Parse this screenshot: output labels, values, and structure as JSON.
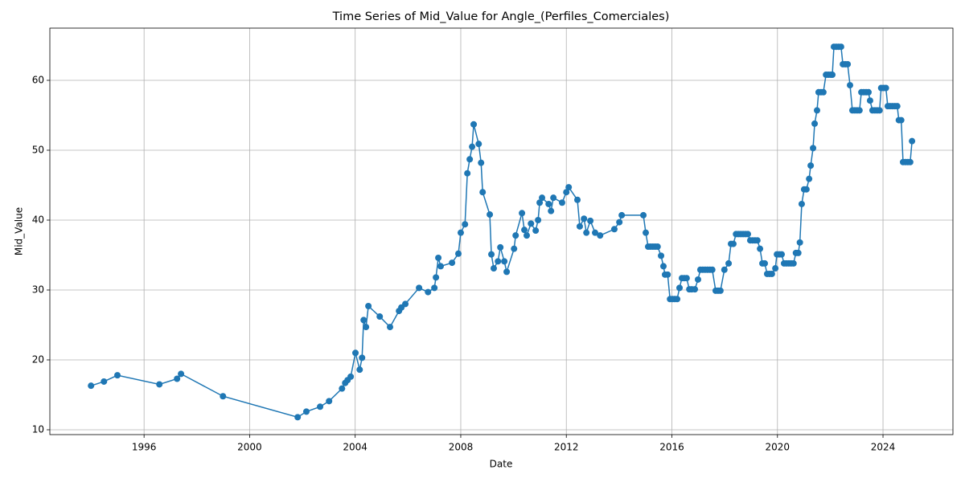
{
  "chart_data": {
    "type": "line",
    "title": "Time Series of Mid_Value for Angle_(Perfiles_Comerciales)",
    "x_label": "Date",
    "y_label": "Mid_Value",
    "xlim": [
      1992.43,
      2026.65
    ],
    "ylim": [
      9.31,
      67.47
    ],
    "xticks": [
      1996,
      2000,
      2004,
      2008,
      2012,
      2016,
      2020,
      2024
    ],
    "yticks": [
      10,
      20,
      30,
      40,
      50,
      60
    ],
    "grid": true,
    "series": [
      {
        "name": "Mid_Value",
        "color": "#1f77b4",
        "x": [
          1993.99,
          1994.48,
          1994.99,
          1996.58,
          1997.25,
          1997.4,
          1998.99,
          2001.82,
          2002.15,
          2002.67,
          2003.01,
          2003.5,
          2003.62,
          2003.71,
          2003.83,
          2004.01,
          2004.17,
          2004.26,
          2004.32,
          2004.41,
          2004.5,
          2004.93,
          2005.32,
          2005.66,
          2005.75,
          2005.9,
          2006.42,
          2006.76,
          2007.0,
          2007.06,
          2007.15,
          2007.24,
          2007.67,
          2007.91,
          2008.0,
          2008.16,
          2008.25,
          2008.34,
          2008.43,
          2008.49,
          2008.68,
          2008.77,
          2008.83,
          2009.1,
          2009.16,
          2009.25,
          2009.41,
          2009.5,
          2009.65,
          2009.74,
          2010.02,
          2010.08,
          2010.32,
          2010.41,
          2010.5,
          2010.66,
          2010.84,
          2010.93,
          2010.99,
          2011.08,
          2011.33,
          2011.42,
          2011.51,
          2011.84,
          2012.0,
          2012.09,
          2012.42,
          2012.51,
          2012.67,
          2012.76,
          2012.91,
          2013.09,
          2013.28,
          2013.82,
          2014.01,
          2014.1,
          2014.92,
          2015.01,
          2015.1,
          2015.19,
          2015.28,
          2015.37,
          2015.46,
          2015.59,
          2015.68,
          2015.74,
          2015.84,
          2015.93,
          2016.02,
          2016.11,
          2016.2,
          2016.29,
          2016.38,
          2016.47,
          2016.56,
          2016.66,
          2016.75,
          2016.87,
          2016.99,
          2017.08,
          2017.17,
          2017.26,
          2017.35,
          2017.44,
          2017.53,
          2017.66,
          2017.75,
          2017.84,
          2017.99,
          2018.15,
          2018.24,
          2018.33,
          2018.43,
          2018.52,
          2018.61,
          2018.7,
          2018.79,
          2018.88,
          2018.97,
          2019.06,
          2019.15,
          2019.24,
          2019.34,
          2019.43,
          2019.52,
          2019.61,
          2019.7,
          2019.79,
          2019.92,
          2019.98,
          2020.07,
          2020.16,
          2020.25,
          2020.34,
          2020.43,
          2020.52,
          2020.61,
          2020.7,
          2020.79,
          2020.85,
          2020.92,
          2021.01,
          2021.1,
          2021.2,
          2021.26,
          2021.35,
          2021.41,
          2021.5,
          2021.56,
          2021.65,
          2021.74,
          2021.84,
          2021.93,
          2022.02,
          2022.08,
          2022.14,
          2022.23,
          2022.32,
          2022.41,
          2022.48,
          2022.57,
          2022.66,
          2022.75,
          2022.84,
          2022.93,
          2023.02,
          2023.11,
          2023.18,
          2023.27,
          2023.36,
          2023.45,
          2023.51,
          2023.6,
          2023.69,
          2023.78,
          2023.87,
          2023.93,
          2024.02,
          2024.11,
          2024.18,
          2024.27,
          2024.36,
          2024.45,
          2024.54,
          2024.6,
          2024.69,
          2024.76,
          2024.85,
          2024.94,
          2025.03,
          2025.1
        ],
        "values": [
          16.3,
          16.9,
          17.8,
          16.5,
          17.3,
          18.0,
          14.8,
          11.8,
          12.6,
          13.3,
          14.1,
          15.9,
          16.7,
          17.1,
          17.6,
          21.0,
          18.6,
          20.3,
          25.7,
          24.7,
          27.7,
          26.2,
          24.7,
          27.0,
          27.5,
          28.0,
          30.3,
          29.7,
          30.3,
          31.8,
          34.6,
          33.4,
          33.9,
          35.2,
          38.2,
          39.4,
          46.7,
          48.7,
          50.5,
          53.7,
          50.9,
          48.2,
          44.0,
          40.8,
          35.1,
          33.1,
          34.1,
          36.1,
          34.1,
          32.6,
          35.9,
          37.8,
          41.0,
          38.6,
          37.8,
          39.5,
          38.5,
          40.0,
          42.5,
          43.2,
          42.3,
          41.3,
          43.2,
          42.5,
          44.0,
          44.7,
          42.9,
          39.1,
          40.2,
          38.2,
          39.9,
          38.2,
          37.8,
          38.7,
          39.7,
          40.7,
          40.7,
          38.2,
          36.2,
          36.2,
          36.2,
          36.2,
          36.2,
          34.9,
          33.4,
          32.2,
          32.2,
          28.7,
          28.7,
          28.7,
          28.7,
          30.3,
          31.7,
          31.7,
          31.7,
          30.1,
          30.1,
          30.1,
          31.5,
          32.9,
          32.9,
          32.9,
          32.9,
          32.9,
          32.9,
          29.9,
          29.9,
          29.9,
          32.9,
          33.8,
          36.6,
          36.6,
          38.0,
          38.0,
          38.0,
          38.0,
          38.0,
          38.0,
          37.1,
          37.1,
          37.1,
          37.1,
          35.9,
          33.8,
          33.8,
          32.3,
          32.3,
          32.3,
          33.1,
          35.1,
          35.1,
          35.1,
          33.8,
          33.8,
          33.8,
          33.8,
          33.8,
          35.3,
          35.3,
          36.8,
          42.3,
          44.4,
          44.4,
          45.9,
          47.8,
          50.3,
          53.8,
          55.7,
          58.3,
          58.3,
          58.3,
          60.8,
          60.8,
          60.8,
          60.8,
          64.8,
          64.8,
          64.8,
          64.8,
          62.3,
          62.3,
          62.3,
          59.3,
          55.7,
          55.7,
          55.7,
          55.7,
          58.3,
          58.3,
          58.3,
          58.3,
          57.1,
          55.7,
          55.7,
          55.7,
          55.7,
          58.9,
          58.9,
          58.9,
          56.3,
          56.3,
          56.3,
          56.3,
          56.3,
          54.3,
          54.3,
          48.3,
          48.3,
          48.3,
          48.3,
          51.3
        ]
      }
    ]
  }
}
